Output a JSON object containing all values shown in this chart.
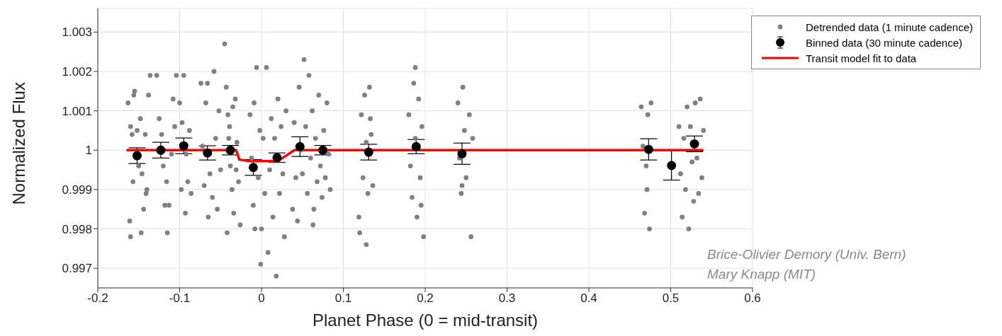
{
  "chart_data": {
    "type": "scatter",
    "xlabel": "Planet Phase (0 = mid-transit)",
    "ylabel": "Normalized Flux",
    "xlim": [
      -0.2,
      0.6
    ],
    "xticks": [
      -0.2,
      -0.1,
      0,
      0.1,
      0.2,
      0.3,
      0.4,
      0.5,
      0.6
    ],
    "ylim": [
      0.9965,
      1.0036
    ],
    "yticks": [
      0.997,
      0.998,
      0.999,
      1,
      1.001,
      1.002,
      1.003
    ],
    "grid": true,
    "legend": "top right",
    "marker": "circle",
    "annotations": [
      "Brice-Olivier Demory (Univ. Bern)",
      "Mary Knapp (MIT)"
    ],
    "series": [
      {
        "name": "Detrended data (1 minute cadence)",
        "color": "#808080",
        "x": [
          -0.163,
          -0.16,
          -0.158,
          -0.156,
          -0.155,
          -0.161,
          -0.16,
          -0.157,
          -0.15,
          -0.152,
          -0.148,
          -0.146,
          -0.144,
          -0.142,
          -0.14,
          -0.138,
          -0.136,
          -0.141,
          -0.147,
          -0.128,
          -0.125,
          -0.122,
          -0.12,
          -0.116,
          -0.113,
          -0.11,
          -0.108,
          -0.106,
          -0.104,
          -0.115,
          -0.118,
          -0.1,
          -0.097,
          -0.095,
          -0.093,
          -0.09,
          -0.088,
          -0.086,
          -0.092,
          -0.098,
          -0.074,
          -0.072,
          -0.07,
          -0.068,
          -0.066,
          -0.063,
          -0.06,
          -0.058,
          -0.056,
          -0.054,
          -0.052,
          -0.05,
          -0.065,
          -0.045,
          -0.043,
          -0.041,
          -0.04,
          -0.038,
          -0.036,
          -0.034,
          -0.032,
          -0.03,
          -0.028,
          -0.026,
          -0.039,
          -0.035,
          -0.031,
          -0.042,
          -0.014,
          -0.012,
          -0.01,
          -0.008,
          -0.006,
          -0.004,
          -0.002,
          -0.001,
          0,
          0.002,
          0.004,
          -0.009,
          0.006,
          0.008,
          0.01,
          0.012,
          0.014,
          0.016,
          0.018,
          0.02,
          0.022,
          0.024,
          0.026,
          0.028,
          0.03,
          0.038,
          0.04,
          0.042,
          0.044,
          0.046,
          0.048,
          0.05,
          0.052,
          0.054,
          0.056,
          0.058,
          0.06,
          0.062,
          0.064,
          0.066,
          0.068,
          0.07,
          0.072,
          0.074,
          0.076,
          0.078,
          0.08,
          0.082,
          0.084,
          0.063,
          0.119,
          0.12,
          0.122,
          0.124,
          0.126,
          0.128,
          0.13,
          0.132,
          0.134,
          0.136,
          0.128,
          0.133,
          0.18,
          0.182,
          0.184,
          0.186,
          0.188,
          0.19,
          0.192,
          0.194,
          0.196,
          0.198,
          0.188,
          0.195,
          0.24,
          0.242,
          0.244,
          0.246,
          0.248,
          0.25,
          0.254,
          0.256,
          0.258,
          0.245,
          0.464,
          0.466,
          0.468,
          0.47,
          0.472,
          0.474,
          0.476,
          0.471,
          0.51,
          0.512,
          0.514,
          0.516,
          0.518,
          0.52,
          0.522,
          0.524,
          0.526,
          0.528,
          0.53,
          0.532,
          0.534,
          0.536,
          0.538,
          0.54
        ],
        "values": [
          1.0012,
          1.0006,
          1.0004,
          1.0014,
          1.0015,
          0.9982,
          0.9978,
          0.9992,
          0.9996,
          1.0005,
          1.0008,
          0.9994,
          0.9985,
          1.0004,
          0.999,
          1.0014,
          1.0019,
          0.9989,
          0.9979,
          1.0019,
          1.0008,
          1.0004,
          0.9996,
          0.9992,
          0.9986,
          0.9999,
          1.0013,
          1.0006,
          1.0019,
          0.9979,
          0.9986,
          1.0012,
          1.0007,
          1.0019,
          0.9984,
          0.9992,
          1.0005,
          0.9989,
          0.9999,
          0.999,
          1.0017,
          1.0001,
          0.9991,
          1.0012,
          1.0017,
          0.9994,
          0.9988,
          1.002,
          1.0003,
          0.9985,
          1.001,
          0.9995,
          0.9983,
          1.0027,
          1.0016,
          1.0009,
          1.0003,
          0.9996,
          0.999,
          0.9984,
          1.0013,
          1.0002,
          0.9992,
          0.9981,
          1.0006,
          1.0011,
          0.9995,
          0.9979,
          1.0009,
          0.9998,
          0.9986,
          0.998,
          1.0021,
          0.9993,
          1.0005,
          0.9971,
          0.998,
          1.0003,
          0.9989,
          1.0012,
          1.0021,
          0.9974,
          0.9995,
          1.0008,
          0.9983,
          1.0003,
          0.9968,
          1.0013,
          0.9989,
          1.0006,
          0.9994,
          0.9978,
          1.001,
          0.9985,
          1.0007,
          0.9993,
          0.9982,
          1.0016,
          1.0,
          0.9994,
          1.0023,
          1.0006,
          0.9989,
          1.0019,
          0.9998,
          1.001,
          0.9985,
          1.0003,
          0.9992,
          1.0014,
          0.9996,
          0.9988,
          1.0005,
          0.9993,
          1.0012,
          0.9999,
          0.999,
          0.9981,
          0.9983,
          0.9979,
          1.0009,
          0.9993,
          1.0014,
          1.0002,
          0.9989,
          1.0016,
          1.0004,
          0.9991,
          0.9976,
          1.0008,
          1.0009,
          0.9996,
          0.9988,
          1.0017,
          1.0003,
          0.9983,
          1.0013,
          0.9993,
          1.0006,
          0.9978,
          1.0021,
          0.9986,
          1.0012,
          0.9998,
          0.9989,
          1.0016,
          1.0005,
          0.9993,
          1.0009,
          0.9978,
          1.0003,
          0.9991,
          1.0011,
          1.0001,
          0.9984,
          0.9996,
          1.0009,
          0.998,
          1.0012,
          0.999,
          1.0006,
          0.9994,
          0.9983,
          1.0003,
          0.999,
          1.0011,
          0.998,
          1.0006,
          0.9997,
          0.9987,
          1.0012,
          0.9998,
          0.9989,
          1.0013,
          0.9993,
          1.0005
        ]
      },
      {
        "name": "Binned data (30 minute cadence)",
        "color": "#000000",
        "x": [
          -0.152,
          -0.123,
          -0.095,
          -0.066,
          -0.038,
          -0.01,
          0.019,
          0.047,
          0.075,
          0.131,
          0.189,
          0.245,
          0.473,
          0.501,
          0.529
        ],
        "values": [
          0.99986,
          1.0,
          1.00011,
          0.99993,
          1.0,
          0.99956,
          0.99981,
          1.00009,
          1.0,
          0.99995,
          1.00009,
          0.99991,
          1.00002,
          0.99961,
          1.00016
        ],
        "errors": [
          0.0002,
          0.0002,
          0.0002,
          0.00018,
          0.00012,
          0.0002,
          0.00012,
          0.00025,
          0.00012,
          0.0002,
          0.00018,
          0.00027,
          0.00027,
          0.00037,
          0.0002
        ]
      },
      {
        "name": "Transit model fit to data",
        "type": "line",
        "color": "#ff0000",
        "marker": "none",
        "x": [
          -0.165,
          -0.031,
          -0.027,
          -0.015,
          0.02,
          0.04,
          0.54
        ],
        "values": [
          1,
          1,
          0.99976,
          0.99972,
          0.99972,
          1,
          1
        ]
      }
    ]
  }
}
